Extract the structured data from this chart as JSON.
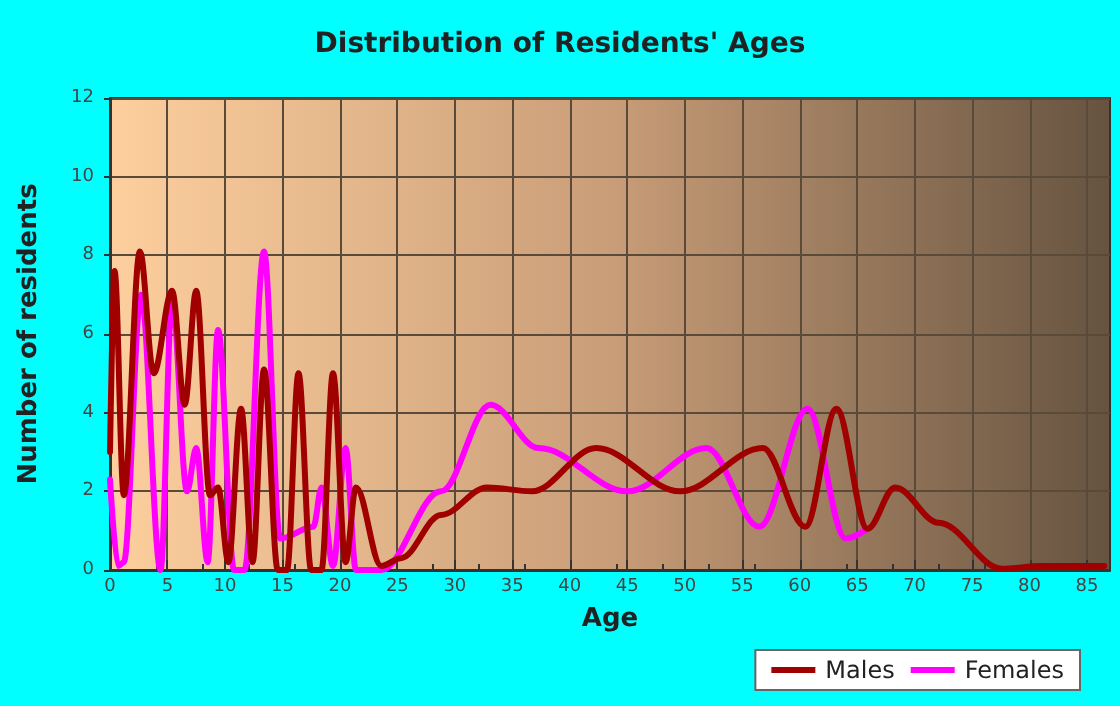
{
  "chart_data": {
    "type": "line",
    "title": "Distribution of Residents' Ages",
    "xlabel": "Age",
    "ylabel": "Number of residents",
    "xlim": [
      0,
      87
    ],
    "xticks": [
      0,
      5,
      10,
      15,
      20,
      25,
      30,
      35,
      40,
      45,
      50,
      55,
      60,
      65,
      70,
      75,
      80,
      85
    ],
    "ylim": [
      0,
      12
    ],
    "yticks": [
      0,
      2,
      4,
      6,
      8,
      10,
      12
    ],
    "grid": true,
    "legend": "bottom right",
    "marker": "none",
    "line_style": "solid",
    "series": [
      {
        "name": "Males",
        "color": "#a00000",
        "x": [
          0,
          0.4,
          1.2,
          2.6,
          3.8,
          5.4,
          6.5,
          7.5,
          8.7,
          9.4,
          10.3,
          11.4,
          12.4,
          13.4,
          14.6,
          15.4,
          16.4,
          17.5,
          18.4,
          19.4,
          20.5,
          21.4,
          23.6,
          25.3,
          28.8,
          32.8,
          36.7,
          42.3,
          49.6,
          56.8,
          60.5,
          63.2,
          65.9,
          68.3,
          72.1,
          77.6,
          81,
          86.5
        ],
        "values": [
          3.0,
          7.6,
          1.9,
          8.1,
          5.0,
          7.1,
          4.2,
          7.1,
          1.9,
          2.1,
          0.2,
          4.1,
          0.2,
          5.1,
          0,
          0,
          5.0,
          0,
          0,
          5.0,
          0.2,
          2.1,
          0.1,
          0.3,
          1.4,
          2.1,
          2.0,
          3.1,
          2.0,
          3.1,
          1.1,
          4.1,
          1.05,
          2.1,
          1.2,
          0.03,
          0.1,
          0.1
        ]
      },
      {
        "name": "Females",
        "color": "#ff00ff",
        "x": [
          0,
          0.7,
          1.2,
          2.7,
          4.4,
          5.4,
          6.7,
          7.5,
          8.5,
          9.4,
          10.8,
          11.7,
          13.4,
          14.8,
          16.4,
          17.7,
          18.4,
          19.4,
          20.5,
          21.4,
          23.6,
          28.8,
          33.1,
          37.3,
          45,
          51.9,
          56.5,
          60.7,
          64.0,
          65.9
        ],
        "values": [
          2.3,
          0.1,
          0.2,
          7.0,
          0,
          6.9,
          2.0,
          3.1,
          0.2,
          6.1,
          0,
          0,
          8.1,
          0.8,
          null,
          1.1,
          2.1,
          0.1,
          3.1,
          0,
          0,
          2.0,
          4.2,
          3.1,
          2.0,
          3.1,
          1.1,
          4.1,
          0.8,
          1.05
        ]
      }
    ]
  }
}
